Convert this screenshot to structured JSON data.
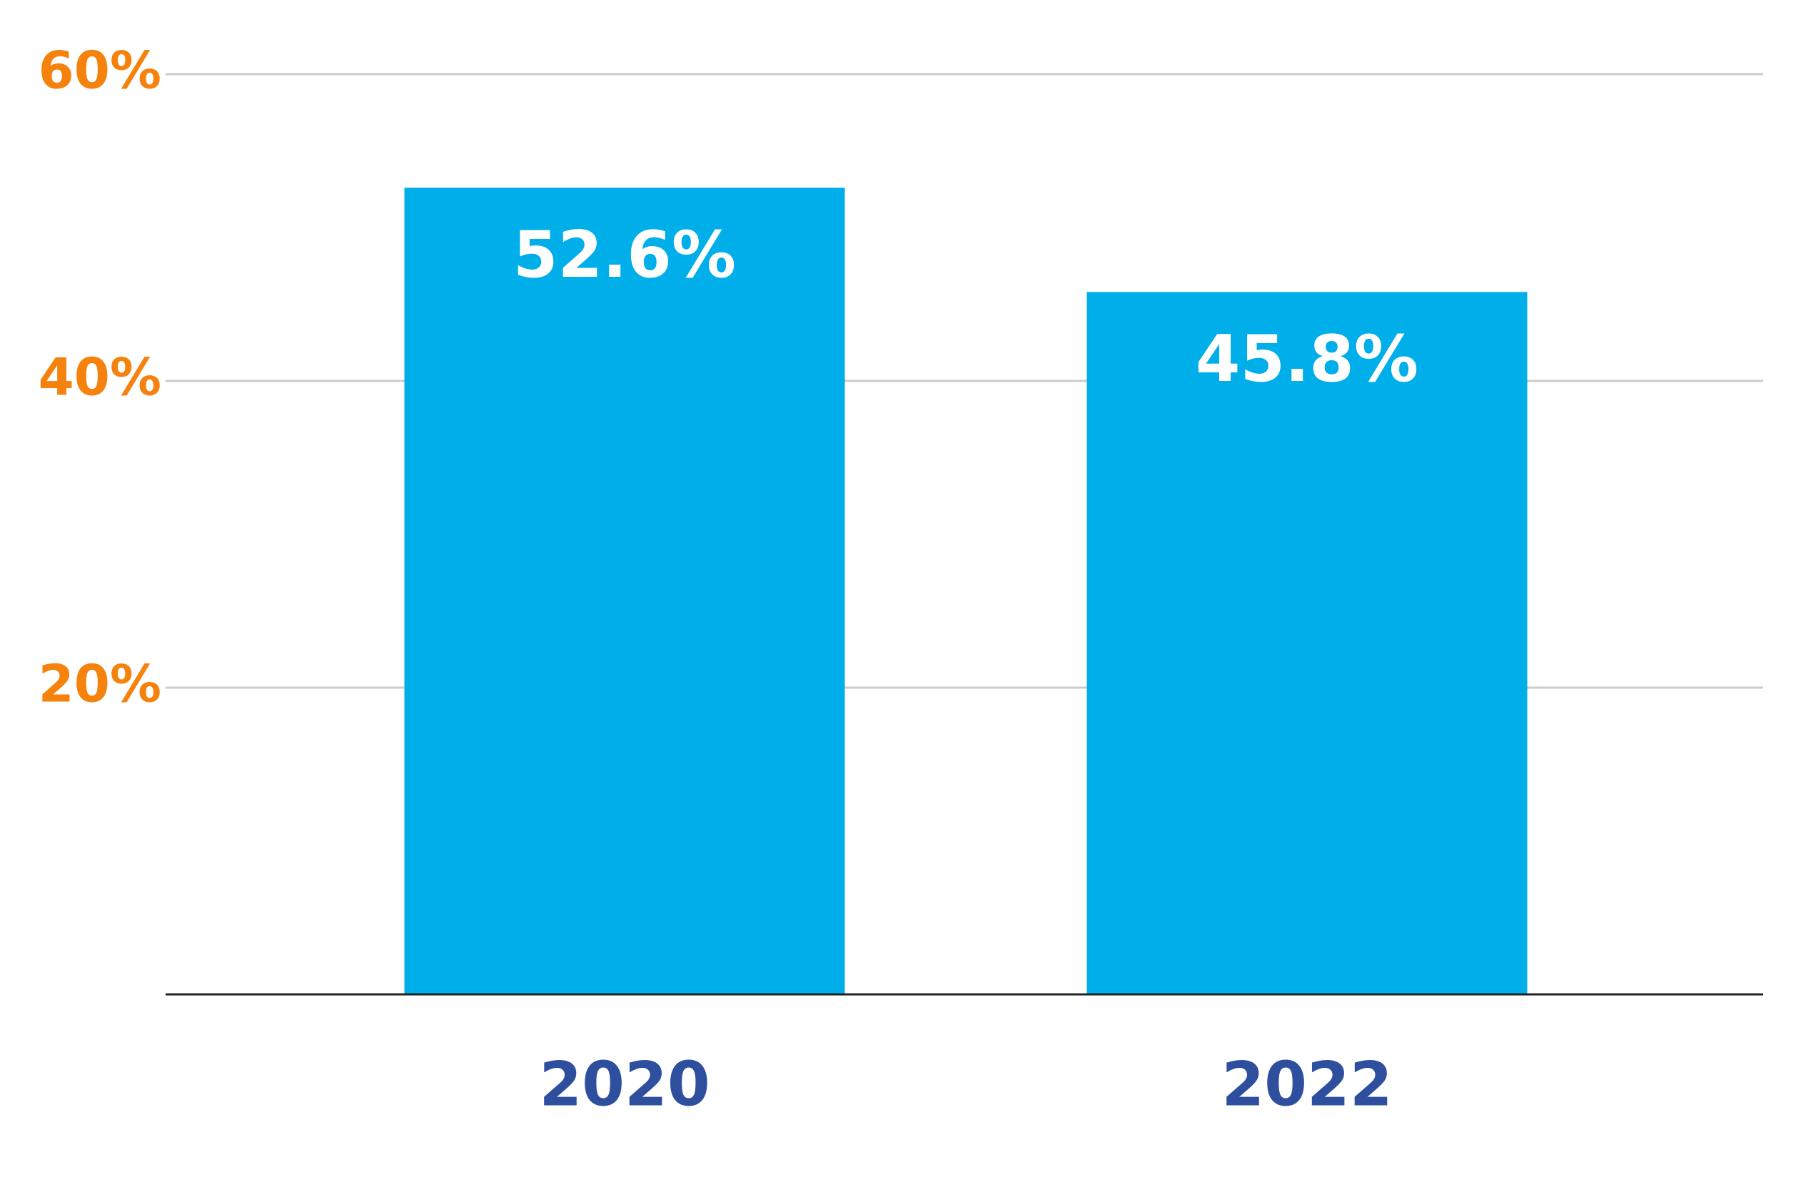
{
  "chart_data": {
    "type": "bar",
    "categories": [
      "2020",
      "2022"
    ],
    "values": [
      52.6,
      45.8
    ],
    "value_labels": [
      "52.6%",
      "45.8%"
    ],
    "color": "#00aeea",
    "ylim": [
      0,
      60
    ],
    "yticks": [
      {
        "value": 20,
        "label": "20%"
      },
      {
        "value": 40,
        "label": "40%"
      },
      {
        "value": 60,
        "label": "60%"
      }
    ],
    "grid": true
  }
}
